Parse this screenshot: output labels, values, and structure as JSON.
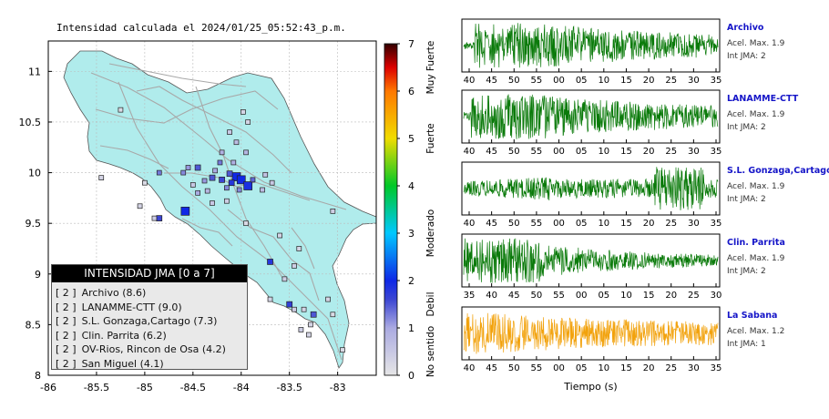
{
  "header": {
    "title": "Intensidad calculada el 2024/01/25_05:52:43_p.m."
  },
  "legend": {
    "title": "INTENSIDAD JMA [0 a 7]",
    "items": [
      {
        "level": "[ 2 ]",
        "name": "Archivo (8.6)"
      },
      {
        "level": "[ 2 ]",
        "name": "LANAMME-CTT (9.0)"
      },
      {
        "level": "[ 2 ]",
        "name": "S.L. Gonzaga,Cartago (7.3)"
      },
      {
        "level": "[ 2 ]",
        "name": "Clin. Parrita (6.2)"
      },
      {
        "level": "[ 2 ]",
        "name": "OV-Rios, Rincon de Osa (4.2)"
      },
      {
        "level": "[ 2 ]",
        "name": "San Miguel (4.1)"
      }
    ]
  },
  "colorbar": {
    "ticks": [
      "0",
      "1",
      "2",
      "3",
      "4",
      "5",
      "6",
      "7"
    ],
    "category_labels": [
      "No sentido",
      "Debil",
      "Moderado",
      "Fuerte",
      "Muy Fuerte"
    ]
  },
  "stations": [
    {
      "name": "Archivo",
      "acel_label": "Acel. Max. 1.9",
      "int_label": "Int JMA: 2",
      "color": "#0a7a0a",
      "x_ticks": [
        "40",
        "45",
        "50",
        "55",
        "00",
        "05",
        "10",
        "15",
        "20",
        "25",
        "30",
        "35"
      ]
    },
    {
      "name": "LANAMME-CTT",
      "acel_label": "Acel. Max. 1.9",
      "int_label": "Int JMA: 2",
      "color": "#0a7a0a",
      "x_ticks": [
        "40",
        "45",
        "50",
        "55",
        "00",
        "05",
        "10",
        "15",
        "20",
        "25",
        "30",
        "35"
      ]
    },
    {
      "name": "S.L. Gonzaga,Cartago",
      "acel_label": "Acel. Max. 1.9",
      "int_label": "Int JMA: 2",
      "color": "#0a7a0a",
      "x_ticks": [
        "40",
        "45",
        "50",
        "55",
        "00",
        "05",
        "10",
        "15",
        "20",
        "25",
        "30",
        "35"
      ]
    },
    {
      "name": "Clin. Parrita",
      "acel_label": "Acel. Max. 1.9",
      "int_label": "Int JMA: 2",
      "color": "#0a7a0a",
      "x_ticks": [
        "35",
        "40",
        "45",
        "50",
        "55",
        "00",
        "05",
        "10",
        "15",
        "20",
        "25",
        "30"
      ]
    },
    {
      "name": "La Sabana",
      "acel_label": "Acel. Max. 1.2",
      "int_label": "Int JMA: 1",
      "color": "#f2a20c",
      "x_ticks": [
        "40",
        "45",
        "50",
        "55",
        "00",
        "05",
        "10",
        "15",
        "20",
        "25",
        "30",
        "35"
      ]
    }
  ],
  "waveform_xlabel": "Tiempo (s)",
  "chart_data": [
    {
      "type": "scatter",
      "title": "Intensidad calculada el 2024/01/25_05:52:43_p.m.",
      "xlim": [
        -86,
        -82.6
      ],
      "ylim": [
        8,
        11.3
      ],
      "x_ticks": [
        "-86",
        "-85.5",
        "-85",
        "-84.5",
        "-84",
        "-83.5",
        "-83"
      ],
      "y_ticks": [
        "8",
        "8.5",
        "9",
        "9.5",
        "10",
        "10.5",
        "11"
      ],
      "grid": true,
      "points": [
        {
          "x": -84.05,
          "y": 9.96,
          "i": 2.0
        },
        {
          "x": -84.0,
          "y": 9.93,
          "i": 2.0
        },
        {
          "x": -83.93,
          "y": 9.87,
          "i": 1.9
        },
        {
          "x": -84.1,
          "y": 9.9,
          "i": 1.8
        },
        {
          "x": -84.2,
          "y": 9.93,
          "i": 1.6
        },
        {
          "x": -84.12,
          "y": 9.99,
          "i": 1.5
        },
        {
          "x": -83.88,
          "y": 9.93,
          "i": 1.4
        },
        {
          "x": -84.3,
          "y": 9.95,
          "i": 1.5
        },
        {
          "x": -84.45,
          "y": 10.05,
          "i": 1.5
        },
        {
          "x": -84.22,
          "y": 10.1,
          "i": 1.3
        },
        {
          "x": -84.02,
          "y": 9.83,
          "i": 1.2
        },
        {
          "x": -84.15,
          "y": 9.85,
          "i": 1.2
        },
        {
          "x": -84.6,
          "y": 10.0,
          "i": 1.2
        },
        {
          "x": -84.55,
          "y": 10.05,
          "i": 1.1
        },
        {
          "x": -84.38,
          "y": 9.92,
          "i": 1.1
        },
        {
          "x": -84.27,
          "y": 10.02,
          "i": 1.0
        },
        {
          "x": -84.08,
          "y": 10.1,
          "i": 0.9
        },
        {
          "x": -83.95,
          "y": 10.2,
          "i": 0.8
        },
        {
          "x": -84.2,
          "y": 10.2,
          "i": 0.9
        },
        {
          "x": -84.05,
          "y": 10.3,
          "i": 0.7
        },
        {
          "x": -84.12,
          "y": 10.4,
          "i": 0.5
        },
        {
          "x": -83.75,
          "y": 9.98,
          "i": 0.6
        },
        {
          "x": -83.68,
          "y": 9.9,
          "i": 0.5
        },
        {
          "x": -83.78,
          "y": 9.83,
          "i": 0.7
        },
        {
          "x": -84.5,
          "y": 9.88,
          "i": 0.5
        },
        {
          "x": -84.3,
          "y": 9.7,
          "i": 0.5
        },
        {
          "x": -84.15,
          "y": 9.72,
          "i": 0.4
        },
        {
          "x": -84.45,
          "y": 9.8,
          "i": 1.0
        },
        {
          "x": -84.35,
          "y": 9.82,
          "i": 0.8
        },
        {
          "x": -84.85,
          "y": 10.0,
          "i": 1.3
        },
        {
          "x": -84.58,
          "y": 9.62,
          "i": 2.0
        },
        {
          "x": -84.85,
          "y": 9.55,
          "i": 1.6
        },
        {
          "x": -85.45,
          "y": 9.95,
          "i": 0.3
        },
        {
          "x": -85.0,
          "y": 9.9,
          "i": 0.2
        },
        {
          "x": -84.9,
          "y": 9.55,
          "i": 0.4
        },
        {
          "x": -85.05,
          "y": 9.67,
          "i": 0.3
        },
        {
          "x": -85.25,
          "y": 10.62,
          "i": 0.2
        },
        {
          "x": -83.98,
          "y": 10.6,
          "i": 0.3
        },
        {
          "x": -83.93,
          "y": 10.5,
          "i": 0.3
        },
        {
          "x": -83.05,
          "y": 9.62,
          "i": 0.4
        },
        {
          "x": -83.6,
          "y": 9.38,
          "i": 0.3
        },
        {
          "x": -83.7,
          "y": 9.12,
          "i": 1.8
        },
        {
          "x": -83.45,
          "y": 9.08,
          "i": 0.4
        },
        {
          "x": -83.4,
          "y": 9.25,
          "i": 0.3
        },
        {
          "x": -83.55,
          "y": 8.95,
          "i": 0.4
        },
        {
          "x": -83.5,
          "y": 8.7,
          "i": 1.7
        },
        {
          "x": -83.45,
          "y": 8.65,
          "i": 0.4
        },
        {
          "x": -83.35,
          "y": 8.65,
          "i": 0.3
        },
        {
          "x": -83.25,
          "y": 8.6,
          "i": 1.5
        },
        {
          "x": -83.28,
          "y": 8.5,
          "i": 0.3
        },
        {
          "x": -83.38,
          "y": 8.45,
          "i": 0.4
        },
        {
          "x": -83.3,
          "y": 8.4,
          "i": 0.3
        },
        {
          "x": -83.1,
          "y": 8.75,
          "i": 0.3
        },
        {
          "x": -83.05,
          "y": 8.6,
          "i": 0.2
        },
        {
          "x": -82.95,
          "y": 8.25,
          "i": 0.2
        },
        {
          "x": -83.7,
          "y": 8.75,
          "i": 0.3
        },
        {
          "x": -83.95,
          "y": 9.5,
          "i": 0.2
        }
      ]
    },
    {
      "type": "line",
      "title": "Archivo",
      "xlabel": "",
      "annotations": [
        "Acel. Max. 1.9",
        "Int JMA: 2"
      ]
    },
    {
      "type": "line",
      "title": "LANAMME-CTT",
      "xlabel": "",
      "annotations": [
        "Acel. Max. 1.9",
        "Int JMA: 2"
      ]
    },
    {
      "type": "line",
      "title": "S.L. Gonzaga,Cartago",
      "xlabel": "",
      "annotations": [
        "Acel. Max. 1.9",
        "Int JMA: 2"
      ]
    },
    {
      "type": "line",
      "title": "Clin. Parrita",
      "xlabel": "",
      "annotations": [
        "Acel. Max. 1.9",
        "Int JMA: 2"
      ]
    },
    {
      "type": "line",
      "title": "La Sabana",
      "xlabel": "Tiempo (s)",
      "annotations": [
        "Acel. Max. 1.2",
        "Int JMA: 1"
      ]
    }
  ]
}
